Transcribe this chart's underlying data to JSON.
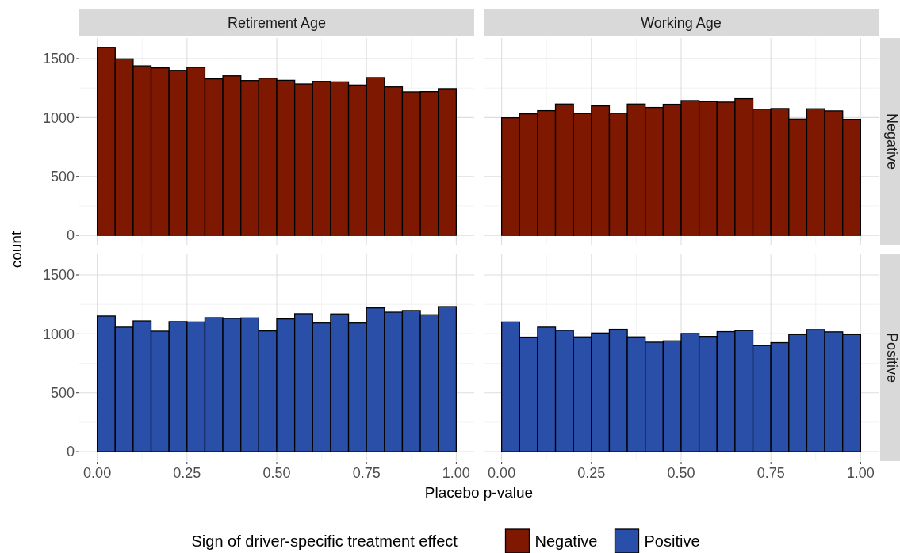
{
  "chart_data": [
    {
      "type": "histogram",
      "title": "Retirement Age",
      "xlabel": "Placebo p-value",
      "ylabel": "count",
      "legend_title": "Sign of driver-specific treatment effect",
      "legend": "bottom",
      "grid": true,
      "tick_labels": "y",
      "bins": [
        0,
        0.05,
        0.1,
        0.15,
        0.2,
        0.25,
        0.3,
        0.35,
        0.4,
        0.45,
        0.5,
        0.55,
        0.6,
        0.65,
        0.7,
        0.75,
        0.8,
        0.85,
        0.9,
        0.95,
        1
      ],
      "xlim": [
        -0.05,
        1.05
      ],
      "ylim": [
        -80,
        1675
      ],
      "xticks": [
        {
          "value": 0,
          "label": null
        },
        {
          "value": 0.25,
          "label": null
        },
        {
          "value": 0.5,
          "label": null
        },
        {
          "value": 0.75,
          "label": null
        },
        {
          "value": 1,
          "label": null
        }
      ],
      "yticks": [
        0,
        500,
        1000,
        1500
      ],
      "series": [
        {
          "name": "Negative",
          "color": "#7f1800",
          "values": [
            1596,
            1498,
            1439,
            1422,
            1401,
            1426,
            1328,
            1354,
            1314,
            1334,
            1316,
            1285,
            1307,
            1303,
            1276,
            1339,
            1260,
            1218,
            1220,
            1245
          ]
        }
      ]
    },
    {
      "type": "histogram",
      "title": "Working Age",
      "y2label": "Negative",
      "grid": true,
      "tick_labels": false,
      "bins": [
        0,
        0.05,
        0.1,
        0.15,
        0.2,
        0.25,
        0.3,
        0.35,
        0.4,
        0.45,
        0.5,
        0.55,
        0.6,
        0.65,
        0.7,
        0.75,
        0.8,
        0.85,
        0.9,
        0.95,
        1
      ],
      "xlim": [
        -0.05,
        1.05
      ],
      "ylim": [
        -80,
        1675
      ],
      "xticks": [
        {
          "value": 0,
          "label": null
        },
        {
          "value": 0.25,
          "label": null
        },
        {
          "value": 0.5,
          "label": null
        },
        {
          "value": 0.75,
          "label": null
        },
        {
          "value": 1,
          "label": null
        }
      ],
      "yticks": [
        {
          "value": 0,
          "label": null
        },
        {
          "value": 500,
          "label": null
        },
        {
          "value": 1000,
          "label": null
        },
        {
          "value": 1500,
          "label": null
        }
      ],
      "series": [
        {
          "color": "#7f1800",
          "values": [
            998,
            1032,
            1059,
            1115,
            1034,
            1099,
            1037,
            1115,
            1086,
            1113,
            1144,
            1135,
            1131,
            1160,
            1072,
            1077,
            987,
            1075,
            1057,
            985
          ]
        }
      ]
    },
    {
      "type": "histogram",
      "grid": true,
      "bins": [
        0,
        0.05,
        0.1,
        0.15,
        0.2,
        0.25,
        0.3,
        0.35,
        0.4,
        0.45,
        0.5,
        0.55,
        0.6,
        0.65,
        0.7,
        0.75,
        0.8,
        0.85,
        0.9,
        0.95,
        1
      ],
      "xlim": [
        -0.05,
        1.05
      ],
      "ylim": [
        -80,
        1675
      ],
      "xticks": [
        {
          "value": 0,
          "label": "0.00"
        },
        {
          "value": 0.25,
          "label": "0.25"
        },
        {
          "value": 0.5,
          "label": "0.50"
        },
        {
          "value": 0.75,
          "label": "0.75"
        },
        {
          "value": 1,
          "label": "1.00"
        }
      ],
      "yticks": [
        0,
        500,
        1000,
        1500
      ],
      "series": [
        {
          "name": "Positive",
          "color": "#2a4fa8",
          "values": [
            1151,
            1057,
            1110,
            1023,
            1104,
            1101,
            1137,
            1131,
            1135,
            1025,
            1126,
            1171,
            1092,
            1169,
            1092,
            1220,
            1184,
            1198,
            1162,
            1231
          ]
        }
      ]
    },
    {
      "type": "histogram",
      "y2label": "Positive",
      "grid": true,
      "tick_labels": "x",
      "bins": [
        0,
        0.05,
        0.1,
        0.15,
        0.2,
        0.25,
        0.3,
        0.35,
        0.4,
        0.45,
        0.5,
        0.55,
        0.6,
        0.65,
        0.7,
        0.75,
        0.8,
        0.85,
        0.9,
        0.95,
        1
      ],
      "xlim": [
        -0.05,
        1.05
      ],
      "ylim": [
        -80,
        1675
      ],
      "xticks": [
        {
          "value": 0,
          "label": "0.00"
        },
        {
          "value": 0.25,
          "label": "0.25"
        },
        {
          "value": 0.5,
          "label": "0.50"
        },
        {
          "value": 0.75,
          "label": "0.75"
        },
        {
          "value": 1,
          "label": "1.00"
        }
      ],
      "yticks": [
        {
          "value": 0,
          "label": null
        },
        {
          "value": 500,
          "label": null
        },
        {
          "value": 1000,
          "label": null
        },
        {
          "value": 1500,
          "label": null
        }
      ],
      "series": [
        {
          "color": "#2a4fa8",
          "values": [
            1101,
            972,
            1057,
            1030,
            974,
            1007,
            1039,
            974,
            929,
            940,
            1003,
            978,
            1019,
            1028,
            900,
            925,
            994,
            1037,
            1017,
            994
          ]
        }
      ]
    }
  ]
}
